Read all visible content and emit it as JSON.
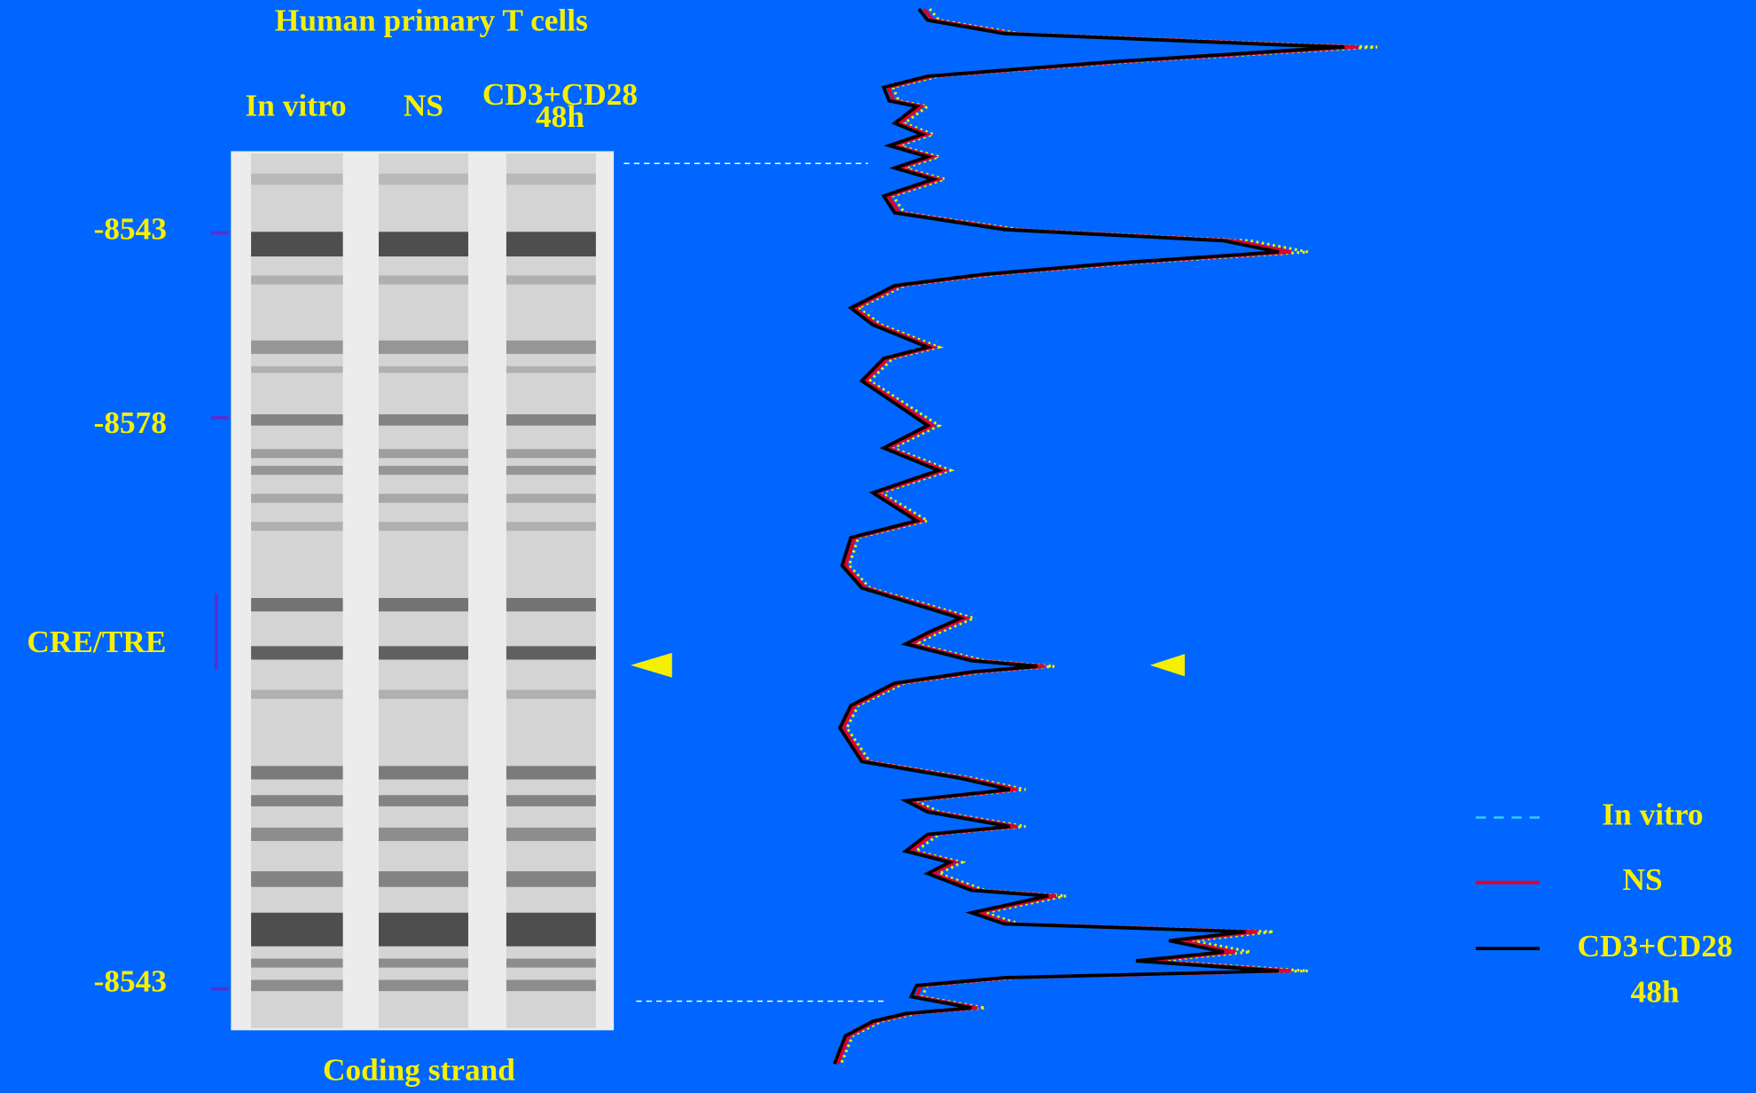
{
  "header": {
    "title": "Human primary T cells"
  },
  "lanes": [
    {
      "lines": [
        "In vitro"
      ]
    },
    {
      "lines": [
        "NS"
      ]
    },
    {
      "lines": [
        "CD3+CD28",
        "48h"
      ]
    }
  ],
  "markers": [
    "-8543",
    "-8578",
    "CRE/TRE",
    "-8543"
  ],
  "footer": "Coding strand",
  "legend": [
    {
      "lines": [
        "In vitro"
      ]
    },
    {
      "lines": [
        "NS"
      ]
    },
    {
      "lines": [
        "CD3+CD28",
        "48h"
      ]
    }
  ]
}
